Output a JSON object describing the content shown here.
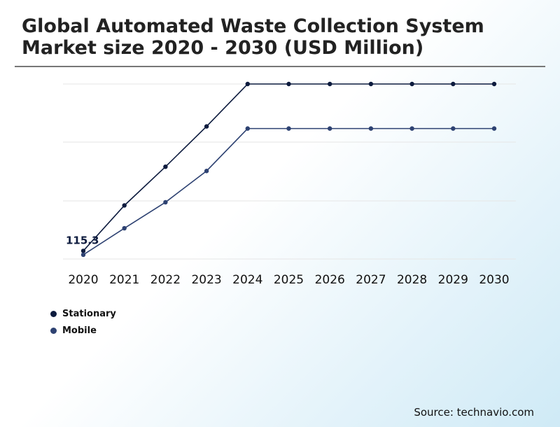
{
  "title_line1": "Global Automated Waste Collection System",
  "title_line2": "Market size 2020 - 2030 (USD Million)",
  "source": "Source: technavio.com",
  "legend": [
    {
      "label": "Stationary",
      "color": "#0d1b3e"
    },
    {
      "label": "Mobile",
      "color": "#2e4272"
    }
  ],
  "chart_data": {
    "type": "line",
    "title": "Global Automated Waste Collection System Market size 2020 - 2030 (USD Million)",
    "categories": [
      "2020",
      "2021",
      "2022",
      "2023",
      "2024",
      "2025",
      "2026",
      "2027",
      "2028",
      "2029",
      "2030"
    ],
    "series": [
      {
        "name": "Stationary",
        "color": "#0d1b3e",
        "values": [
          115.3,
          201,
          274,
          350,
          430,
          430,
          430,
          430,
          430,
          430,
          430
        ]
      },
      {
        "name": "Mobile",
        "color": "#2e4272",
        "values": [
          108,
          158,
          207,
          266,
          346,
          346,
          346,
          346,
          346,
          346,
          346
        ]
      }
    ],
    "data_labels": [
      {
        "series": "Stationary",
        "category": "2020",
        "text": "115.3"
      }
    ],
    "ylim": [
      100,
      430
    ],
    "xlabel": "",
    "ylabel": "",
    "grid": true,
    "legend_position": "bottom-left"
  }
}
